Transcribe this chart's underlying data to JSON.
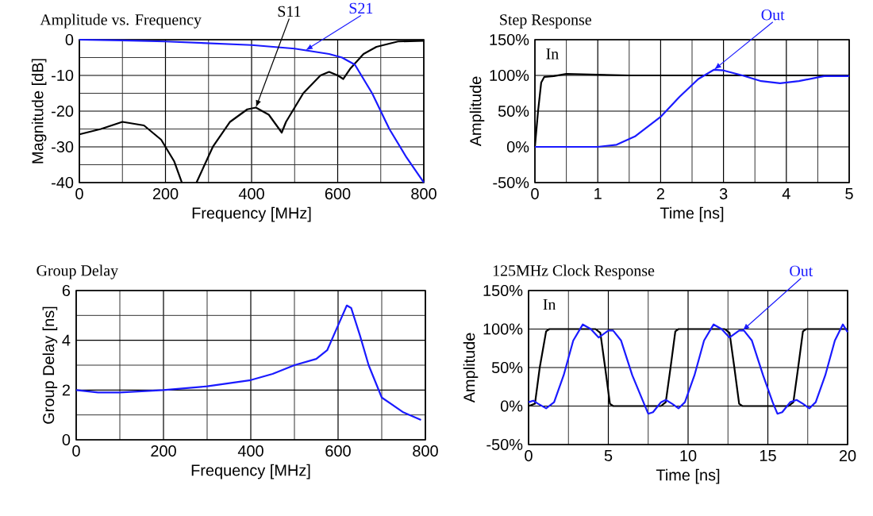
{
  "chart_data": [
    {
      "type": "line",
      "title": "Amplitude vs. Frequency",
      "xlabel": "Frequency [MHz]",
      "ylabel": "Magnitude [dB]",
      "xlim": [
        0,
        800
      ],
      "ylim": [
        -40,
        0
      ],
      "xticks": [
        0,
        200,
        400,
        600,
        800
      ],
      "yticks": [
        -40,
        -30,
        -20,
        -10,
        0
      ],
      "grid": true,
      "series": [
        {
          "color": "#000000",
          "x": [
            0,
            50,
            100,
            150,
            190,
            220,
            238,
            255,
            272,
            310,
            350,
            390,
            410,
            440,
            470,
            480,
            520,
            560,
            580,
            600,
            613,
            630,
            660,
            690,
            740,
            800
          ],
          "values": [
            -26.5,
            -25,
            -23,
            -24,
            -28,
            -34,
            -40,
            null,
            -40,
            -30,
            -23,
            -19.5,
            -19,
            -21,
            -26,
            -23,
            -15,
            -10,
            -9,
            -10,
            -11,
            -8,
            -4,
            -2,
            -0.5,
            -0.3
          ]
        },
        {
          "color": "#1a1aff",
          "x": [
            0,
            100,
            200,
            300,
            400,
            500,
            580,
            610,
            640,
            680,
            720,
            760,
            800
          ],
          "values": [
            0,
            -0.2,
            -0.5,
            -1,
            -1.5,
            -2.5,
            -4,
            -5,
            -7,
            -15,
            -25,
            -33,
            -40
          ]
        }
      ],
      "annotations": [
        {
          "text": "S11",
          "x": 410,
          "y": -19
        },
        {
          "text": "S21",
          "x": 525,
          "y": -3
        }
      ]
    },
    {
      "type": "line",
      "title": "Step Response",
      "xlabel": "Time [ns]",
      "ylabel": "Amplitude",
      "xlim": [
        0,
        5
      ],
      "ylim": [
        -50,
        150
      ],
      "xticks": [
        0,
        1,
        2,
        3,
        4,
        5
      ],
      "yticks": [
        {
          "value": -50,
          "label": "-50%"
        },
        {
          "value": 0,
          "label": "0%"
        },
        {
          "value": 50,
          "label": "50%"
        },
        {
          "value": 100,
          "label": "100%"
        },
        {
          "value": 150,
          "label": "150%"
        }
      ],
      "grid": true,
      "series": [
        {
          "color": "#000000",
          "x": [
            0,
            0.05,
            0.1,
            0.15,
            0.3,
            0.5,
            1,
            1.5,
            5
          ],
          "values": [
            0,
            50,
            90,
            98,
            99,
            102,
            101,
            100,
            100
          ]
        },
        {
          "color": "#1a1aff",
          "x": [
            0,
            1,
            1.3,
            1.6,
            2,
            2.3,
            2.6,
            2.85,
            3,
            3.3,
            3.6,
            3.9,
            4.2,
            4.6,
            5
          ],
          "values": [
            0,
            0,
            3,
            15,
            42,
            70,
            95,
            108,
            107,
            100,
            92,
            89,
            92,
            99,
            99
          ]
        }
      ],
      "annotations": [
        {
          "text": "In",
          "x": 0.15,
          "y": 98
        },
        {
          "text": "Out",
          "x": 2.85,
          "y": 108
        }
      ]
    },
    {
      "type": "line",
      "title": "Group Delay",
      "xlabel": "Frequency [MHz]",
      "ylabel": "Group Delay [ns]",
      "xlim": [
        0,
        800
      ],
      "ylim": [
        0,
        6
      ],
      "xticks": [
        0,
        200,
        400,
        600,
        800
      ],
      "yticks": [
        0,
        2,
        4,
        6
      ],
      "grid": true,
      "series": [
        {
          "color": "#1a1aff",
          "x": [
            0,
            50,
            100,
            200,
            300,
            400,
            450,
            500,
            550,
            575,
            600,
            620,
            630,
            650,
            670,
            700,
            750,
            790
          ],
          "values": [
            2,
            1.9,
            1.9,
            2,
            2.15,
            2.4,
            2.65,
            3,
            3.25,
            3.6,
            4.6,
            5.4,
            5.3,
            4.2,
            3,
            1.7,
            1.1,
            0.8
          ]
        }
      ]
    },
    {
      "type": "line",
      "title": "125MHz Clock Response",
      "xlabel": "Time [ns]",
      "ylabel": "Amplitude",
      "xlim": [
        0,
        20
      ],
      "ylim": [
        -50,
        150
      ],
      "xticks": [
        0,
        5,
        10,
        15,
        20
      ],
      "yticks": [
        {
          "value": -50,
          "label": "-50%"
        },
        {
          "value": 0,
          "label": "0%"
        },
        {
          "value": 50,
          "label": "50%"
        },
        {
          "value": 100,
          "label": "100%"
        },
        {
          "value": 150,
          "label": "150%"
        }
      ],
      "grid": true,
      "series": [
        {
          "color": "#000000",
          "x": [
            0,
            0.4,
            0.7,
            1.1,
            1.3,
            4.2,
            4.5,
            4.8,
            5.1,
            5.3,
            8.3,
            8.6,
            8.9,
            9.2,
            9.4,
            12.3,
            12.6,
            12.9,
            13.2,
            13.4,
            16.3,
            16.6,
            16.9,
            17.2,
            17.4,
            20
          ],
          "values": [
            0,
            3,
            50,
            97,
            100,
            100,
            95,
            50,
            3,
            0,
            0,
            5,
            50,
            97,
            100,
            100,
            95,
            50,
            3,
            0,
            0,
            5,
            50,
            97,
            100,
            100
          ]
        },
        {
          "color": "#1a1aff",
          "x": [
            0,
            0.3,
            0.6,
            1.1,
            1.6,
            2.2,
            2.8,
            3.4,
            3.9,
            4.4,
            5.0,
            5.3,
            5.8,
            6.5,
            7.2,
            7.5,
            7.8,
            8.3,
            8.6,
            9.0,
            9.4,
            9.8,
            10.4,
            11.0,
            11.6,
            12.1,
            12.6,
            13.2,
            13.5,
            14.0,
            14.7,
            15.3,
            15.6,
            15.9,
            16.4,
            16.8,
            17.2,
            17.6,
            18.0,
            18.6,
            19.2,
            19.7,
            20
          ],
          "values": [
            5,
            7,
            3,
            -3,
            5,
            40,
            85,
            106,
            100,
            89,
            98,
            98,
            85,
            40,
            5,
            -10,
            -8,
            5,
            8,
            3,
            -3,
            5,
            40,
            85,
            106,
            100,
            89,
            98,
            98,
            85,
            40,
            5,
            -10,
            -8,
            5,
            8,
            3,
            -3,
            5,
            40,
            85,
            106,
            96
          ]
        }
      ],
      "annotations": [
        {
          "text": "In",
          "x": 1.3,
          "y": 100
        },
        {
          "text": "Out",
          "x": 13.4,
          "y": 98
        }
      ]
    }
  ]
}
